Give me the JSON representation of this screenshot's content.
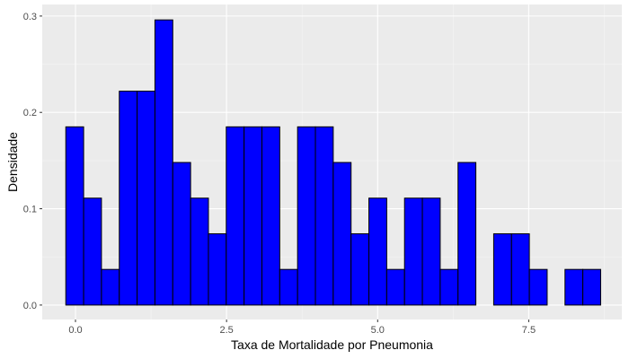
{
  "chart_data": {
    "type": "bar",
    "subtype": "histogram",
    "title": "",
    "xlabel": "Taxa de Mortalidade por Pneumonia",
    "ylabel": "Densidade",
    "xlim": [
      -0.55,
      9.04
    ],
    "ylim": [
      -0.015,
      0.312
    ],
    "x_ticks": [
      0.0,
      2.5,
      5.0,
      7.5
    ],
    "x_tick_labels": [
      "0.0",
      "2.5",
      "5.0",
      "7.5"
    ],
    "y_ticks": [
      0.0,
      0.1,
      0.2,
      0.3
    ],
    "y_tick_labels": [
      "0.0",
      "0.1",
      "0.2",
      "0.3"
    ],
    "grid": true,
    "legend": "none",
    "bin_width": 0.295,
    "bin_start": -0.16,
    "values": [
      0.185,
      0.111,
      0.037,
      0.222,
      0.222,
      0.296,
      0.148,
      0.111,
      0.074,
      0.185,
      0.185,
      0.185,
      0.037,
      0.185,
      0.185,
      0.148,
      0.074,
      0.111,
      0.037,
      0.111,
      0.111,
      0.037,
      0.148,
      0.0,
      0.074,
      0.074,
      0.037,
      0.0,
      0.037,
      0.037
    ],
    "colors": {
      "bar_fill": "#0000ff",
      "bar_stroke": "#000000",
      "panel_background": "#ebebeb",
      "grid_major": "#ffffff",
      "grid_minor": "#f5f5f5",
      "tick_label": "#4d4d4d"
    }
  }
}
